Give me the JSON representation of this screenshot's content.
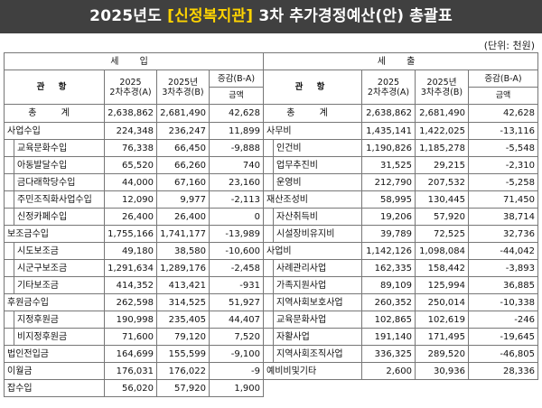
{
  "title": {
    "pre": "2025년도 ",
    "highlight": "[신정복지관]",
    "post": " 3차  추가경정예산(안)  총괄표"
  },
  "unit": "(단위: 천원)",
  "colors": {
    "title_bg": "#404040",
    "title_text": "#ffffff",
    "highlight": "#ffd400"
  },
  "revenue": {
    "section": "세 입",
    "headers": {
      "item": "관 항",
      "col1_line1": "2025",
      "col1_line2": "2차추경(A)",
      "col2_line1": "2025년",
      "col2_line2": "3차추경(B)",
      "col3_line1": "증감(B-A)",
      "col3_line2": "금액"
    },
    "total": {
      "label": "총 계",
      "a": "2,638,862",
      "b": "2,681,490",
      "diff": "42,628"
    },
    "rows": [
      {
        "label": "사업수입",
        "a": "224,348",
        "b": "236,247",
        "diff": "11,899"
      },
      {
        "label": "교육문화수입",
        "a": "76,338",
        "b": "66,450",
        "diff": "-9,888"
      },
      {
        "label": "아동발달수입",
        "a": "65,520",
        "b": "66,260",
        "diff": "740"
      },
      {
        "label": "금다래학당수입",
        "a": "44,000",
        "b": "67,160",
        "diff": "23,160"
      },
      {
        "label": "주민조직화사업수입",
        "a": "12,090",
        "b": "9,977",
        "diff": "-2,113"
      },
      {
        "label": "신정카페수입",
        "a": "26,400",
        "b": "26,400",
        "diff": "0"
      },
      {
        "label": "보조금수입",
        "a": "1,755,166",
        "b": "1,741,177",
        "diff": "-13,989"
      },
      {
        "label": "시도보조금",
        "a": "49,180",
        "b": "38,580",
        "diff": "-10,600"
      },
      {
        "label": "시군구보조금",
        "a": "1,291,634",
        "b": "1,289,176",
        "diff": "-2,458"
      },
      {
        "label": "기타보조금",
        "a": "414,352",
        "b": "413,421",
        "diff": "-931"
      },
      {
        "label": "후원금수입",
        "a": "262,598",
        "b": "314,525",
        "diff": "51,927"
      },
      {
        "label": "지정후원금",
        "a": "190,998",
        "b": "235,405",
        "diff": "44,407"
      },
      {
        "label": "비지정후원금",
        "a": "71,600",
        "b": "79,120",
        "diff": "7,520"
      },
      {
        "label": "법인전입금",
        "a": "164,699",
        "b": "155,599",
        "diff": "-9,100"
      },
      {
        "label": "이월금",
        "a": "176,031",
        "b": "176,022",
        "diff": "-9"
      },
      {
        "label": "잡수입",
        "a": "56,020",
        "b": "57,920",
        "diff": "1,900"
      }
    ]
  },
  "expenditure": {
    "section": "세 출",
    "headers": {
      "item": "관 항",
      "col1_line1": "2025",
      "col1_line2": "2차추경(A)",
      "col2_line1": "2025년",
      "col2_line2": "3차추경(B)",
      "col3_line1": "증감(B-A)",
      "col3_line2": "금액"
    },
    "total": {
      "label": "총 계",
      "a": "2,638,862",
      "b": "2,681,490",
      "diff": "42,628"
    },
    "rows": [
      {
        "label": "사무비",
        "a": "1,435,141",
        "b": "1,422,025",
        "diff": "-13,116"
      },
      {
        "label": "인건비",
        "a": "1,190,826",
        "b": "1,185,278",
        "diff": "-5,548"
      },
      {
        "label": "업무추진비",
        "a": "31,525",
        "b": "29,215",
        "diff": "-2,310"
      },
      {
        "label": "운영비",
        "a": "212,790",
        "b": "207,532",
        "diff": "-5,258"
      },
      {
        "label": "재산조성비",
        "a": "58,995",
        "b": "130,445",
        "diff": "71,450"
      },
      {
        "label": "자산취득비",
        "a": "19,206",
        "b": "57,920",
        "diff": "38,714"
      },
      {
        "label": "시설장비유지비",
        "a": "39,789",
        "b": "72,525",
        "diff": "32,736"
      },
      {
        "label": "사업비",
        "a": "1,142,126",
        "b": "1,098,084",
        "diff": "-44,042"
      },
      {
        "label": "사례관리사업",
        "a": "162,335",
        "b": "158,442",
        "diff": "-3,893"
      },
      {
        "label": "가족지원사업",
        "a": "89,109",
        "b": "125,994",
        "diff": "36,885"
      },
      {
        "label": "지역사회보호사업",
        "a": "260,352",
        "b": "250,014",
        "diff": "-10,338"
      },
      {
        "label": "교육문화사업",
        "a": "102,865",
        "b": "102,619",
        "diff": "-246"
      },
      {
        "label": "자활사업",
        "a": "191,140",
        "b": "171,495",
        "diff": "-19,645"
      },
      {
        "label": "지역사회조직사업",
        "a": "336,325",
        "b": "289,520",
        "diff": "-46,805"
      },
      {
        "label": "예비비및기타",
        "a": "2,600",
        "b": "30,936",
        "diff": "28,336"
      }
    ]
  }
}
